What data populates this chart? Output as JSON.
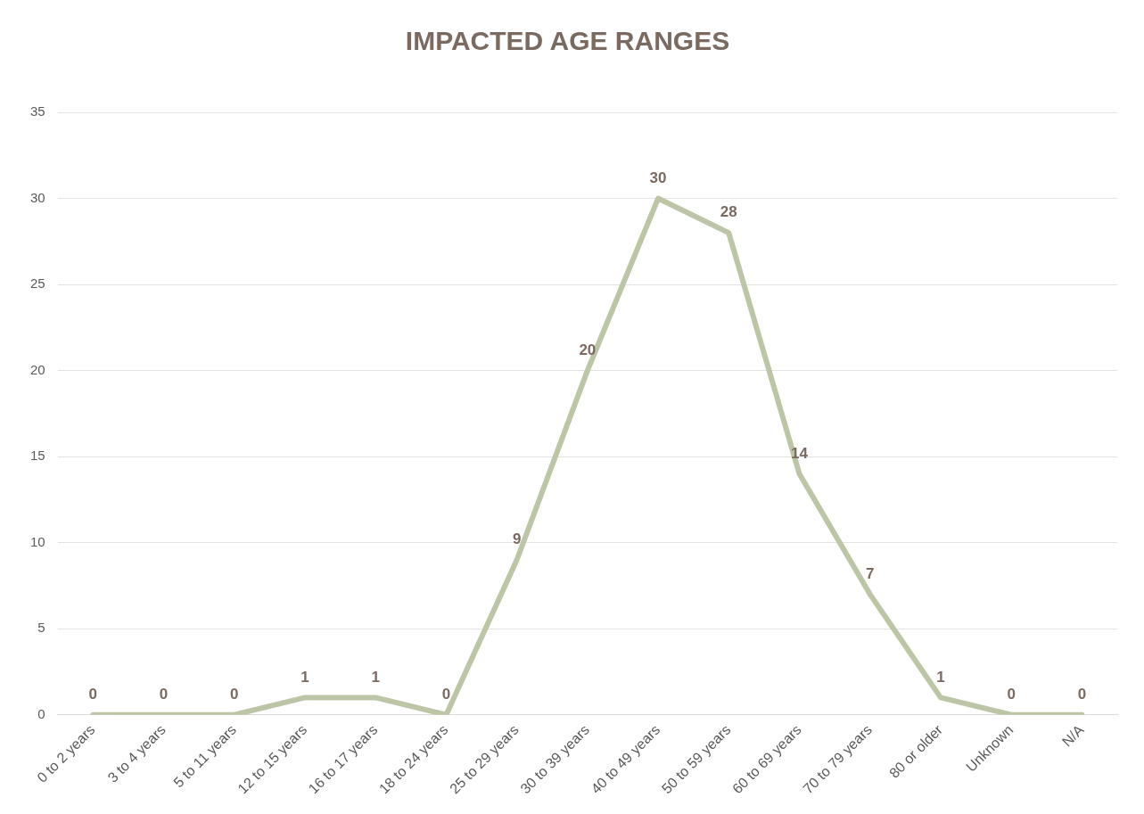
{
  "chart_data": {
    "type": "line",
    "title": "IMPACTED AGE RANGES",
    "categories": [
      "0 to 2 years",
      "3 to 4 years",
      "5 to 11 years",
      "12 to 15 years",
      "16 to 17 years",
      "18 to 24 years",
      "25 to 29 years",
      "30 to 39 years",
      "40 to 49 years",
      "50 to 59 years",
      "60 to 69 years",
      "70 to 79 years",
      "80 or older",
      "Unknown",
      "N/A"
    ],
    "values": [
      0,
      0,
      0,
      1,
      1,
      0,
      9,
      20,
      30,
      28,
      14,
      7,
      1,
      0,
      0
    ],
    "color": "#bcc6a6",
    "ylim": [
      0,
      35
    ],
    "yticks": [
      0,
      5,
      10,
      15,
      20,
      25,
      30,
      35
    ],
    "grid": "y",
    "data_labels": true,
    "marker": "none",
    "line_style": "solid",
    "legend": false
  }
}
